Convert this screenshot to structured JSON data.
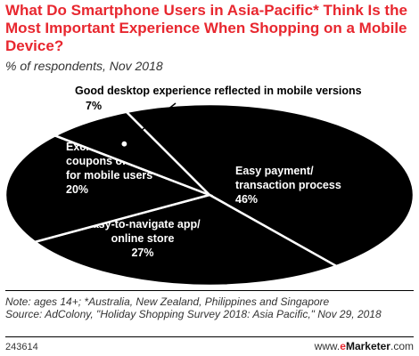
{
  "title": "What Do Smartphone Users in Asia-Pacific* Think Is the Most Important Experience When Shopping on a Mobile Device?",
  "subtitle": "% of respondents, Nov 2018",
  "chart_data": {
    "type": "pie",
    "title": "What Do Smartphone Users in Asia-Pacific* Think Is the Most Important Experience When Shopping on a Mobile Device?",
    "subtitle": "% of respondents, Nov 2018",
    "slices": [
      {
        "label": [
          "Easy payment/",
          "transaction process"
        ],
        "value": 46,
        "value_label": "46%"
      },
      {
        "label": [
          "Easy-to-navigate app/",
          "online store"
        ],
        "value": 27,
        "value_label": "27%"
      },
      {
        "label": [
          "Exclusive",
          "coupons or offers",
          "for mobile users"
        ],
        "value": 20,
        "value_label": "20%"
      },
      {
        "label": [
          "Good desktop experience reflected in mobile versions"
        ],
        "value": 7,
        "value_label": "7%"
      }
    ]
  },
  "colors": {
    "pie_fill": "#000000",
    "divider": "#ffffff",
    "title": "#e8272f"
  },
  "notes": [
    "Note: ages 14+; *Australia, New Zealand, Philippines and Singapore",
    "Source: AdColony, \"Holiday Shopping Survey 2018: Asia Pacific,\" Nov 29, 2018"
  ],
  "footer": {
    "id": "243614",
    "brand_prefix": "www.",
    "brand_e": "e",
    "brand_name": "Marketer",
    "brand_suffix": ".com"
  }
}
